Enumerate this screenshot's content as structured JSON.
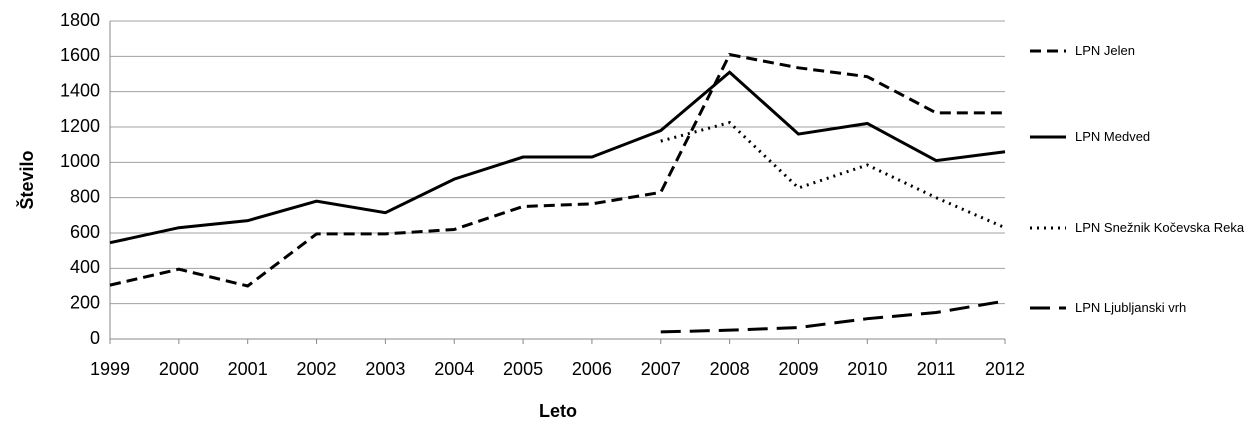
{
  "chart_data": {
    "type": "line",
    "xlabel": "Leto",
    "ylabel": "Število",
    "x": [
      1999,
      2000,
      2001,
      2002,
      2003,
      2004,
      2005,
      2006,
      2007,
      2008,
      2009,
      2010,
      2011,
      2012
    ],
    "xlim": [
      1999,
      2012
    ],
    "xticks": [
      1999,
      2000,
      2001,
      2002,
      2003,
      2004,
      2005,
      2006,
      2007,
      2008,
      2009,
      2010,
      2011,
      2012
    ],
    "ylim": [
      0,
      1800
    ],
    "yticks": [
      0,
      200,
      400,
      600,
      800,
      1000,
      1200,
      1400,
      1600,
      1800
    ],
    "grid": true,
    "legend": "right",
    "series": [
      {
        "name": "LPN Jelen",
        "color": "#000000",
        "dash": "dashed",
        "values": [
          305,
          395,
          300,
          595,
          595,
          620,
          750,
          765,
          830,
          1610,
          1535,
          1485,
          1280,
          1280
        ]
      },
      {
        "name": "LPN Medved",
        "color": "#000000",
        "dash": "solid",
        "values": [
          545,
          630,
          670,
          780,
          715,
          905,
          1030,
          1030,
          1180,
          1510,
          1160,
          1220,
          1010,
          1060
        ]
      },
      {
        "name": "LPN Snežnik Kočevska Reka",
        "color": "#000000",
        "dash": "dotted",
        "values": [
          null,
          null,
          null,
          null,
          null,
          null,
          null,
          null,
          1120,
          1225,
          855,
          985,
          800,
          630
        ]
      },
      {
        "name": "LPN Ljubljanski vrh",
        "color": "#000000",
        "dash": "longdash",
        "values": [
          null,
          null,
          null,
          null,
          null,
          null,
          null,
          null,
          40,
          50,
          65,
          115,
          150,
          215
        ]
      }
    ]
  }
}
